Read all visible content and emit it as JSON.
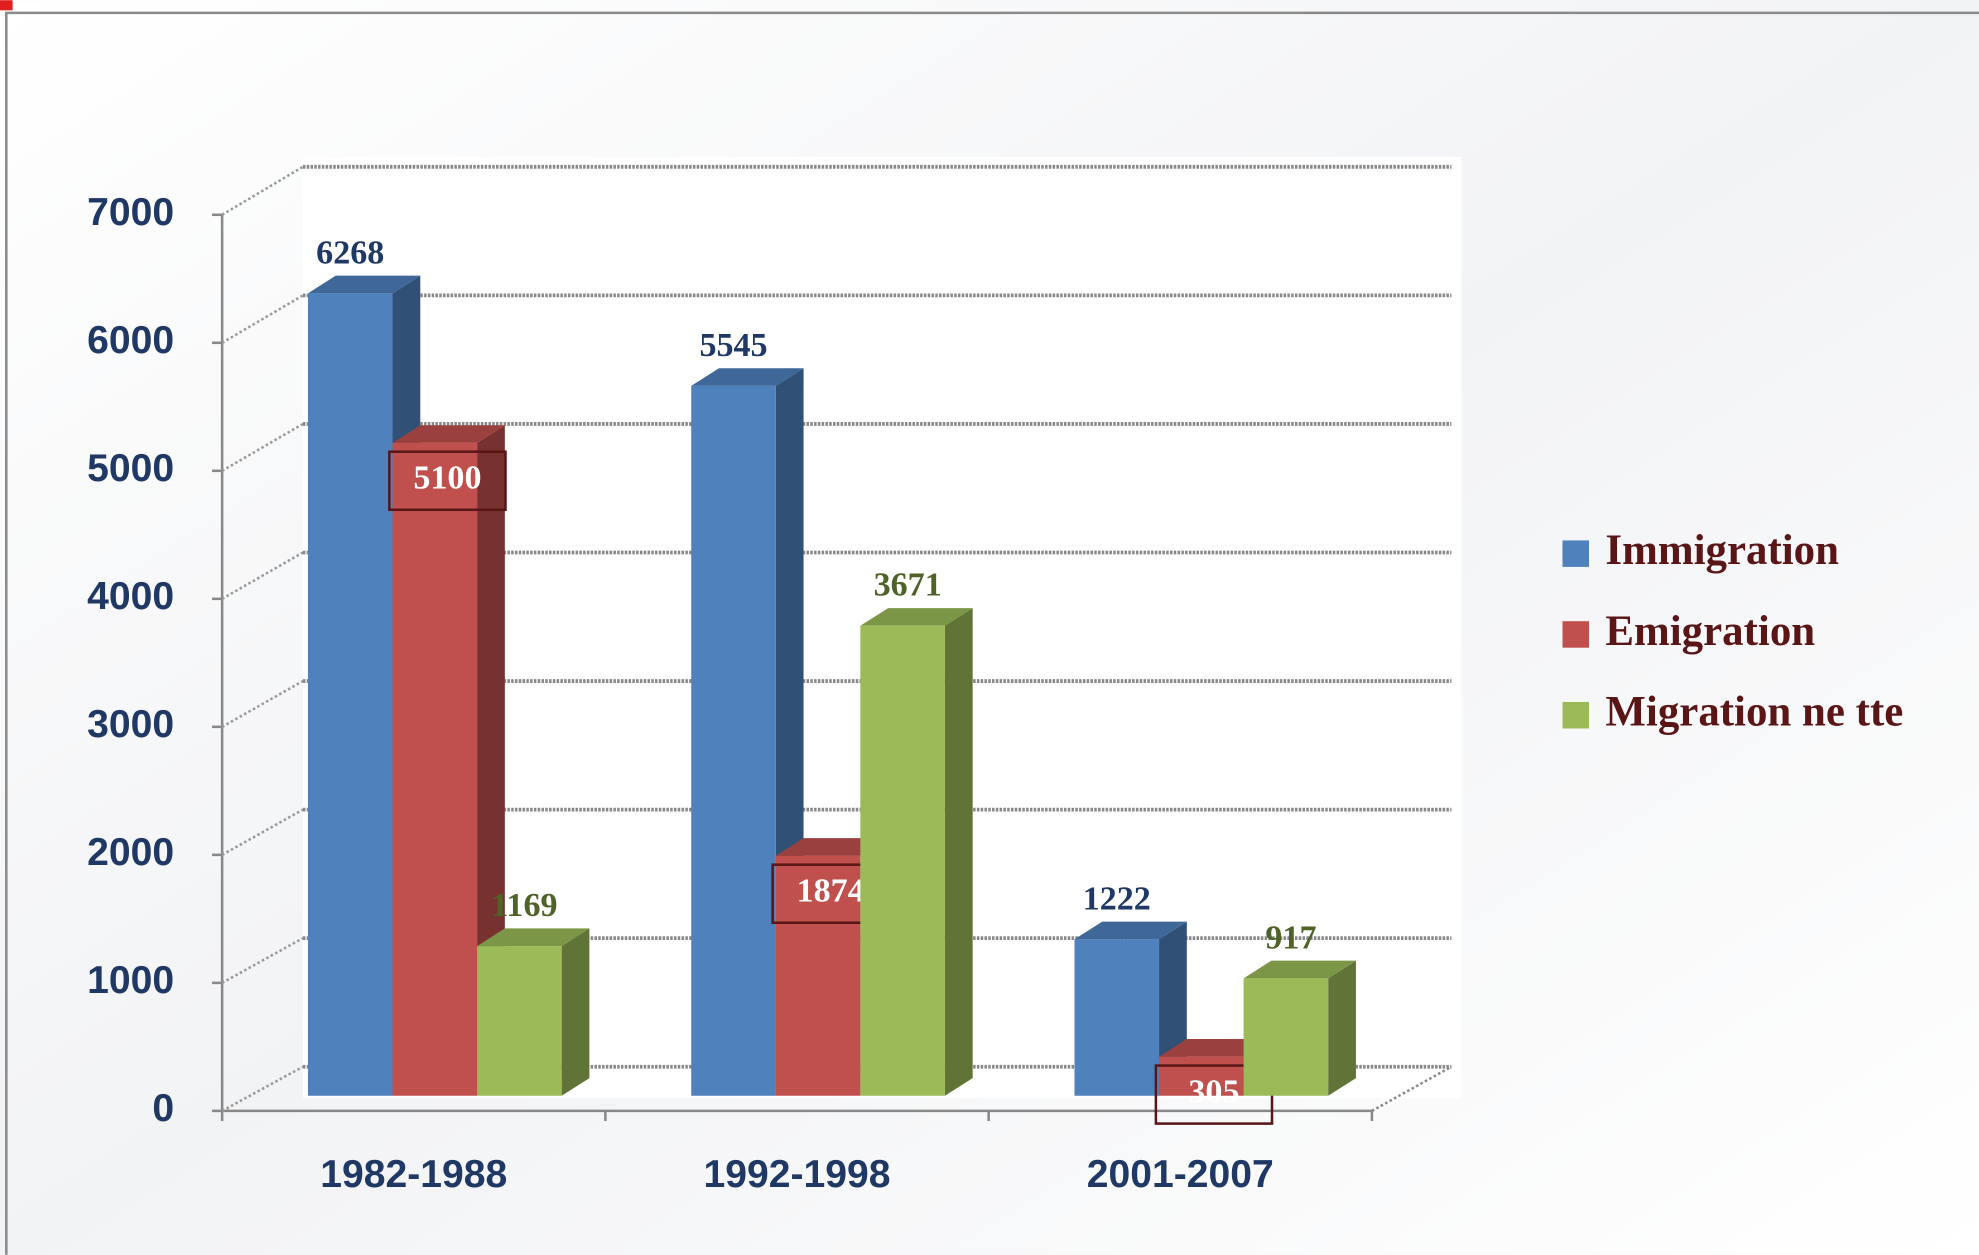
{
  "chart_data": {
    "type": "bar3d",
    "categories": [
      "1982-1988",
      "1992-1998",
      "2001-2007"
    ],
    "series": [
      {
        "name": "Immigration",
        "color": "#4f81bd",
        "values": [
          6268,
          5545,
          1222
        ]
      },
      {
        "name": "Emigration",
        "color": "#c0504d",
        "values": [
          5100,
          1874,
          305
        ]
      },
      {
        "name": "Migration ne tte",
        "color": "#9bbb59",
        "values": [
          1169,
          3671,
          917
        ]
      }
    ],
    "ylim": [
      0,
      7000
    ],
    "yticks": [
      0,
      1000,
      2000,
      3000,
      4000,
      5000,
      6000,
      7000
    ],
    "grid": true,
    "legend": "right"
  }
}
